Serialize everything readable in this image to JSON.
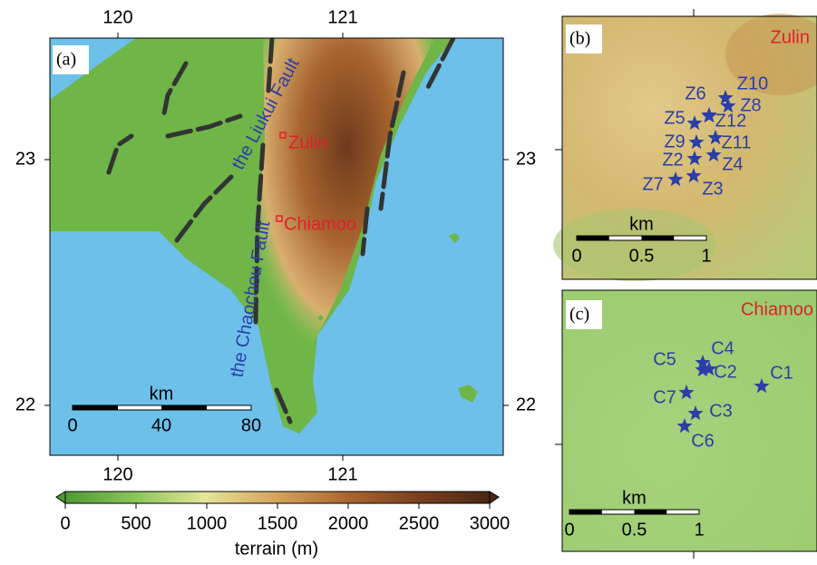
{
  "panel_a": {
    "label": "(a)",
    "top_ticks": [
      "120",
      "121"
    ],
    "bottom_ticks": [
      "120",
      "121"
    ],
    "left_ticks": [
      "23",
      "22"
    ],
    "right_ticks": [
      "23",
      "22"
    ],
    "sites": [
      "Zulin",
      "Chiamoo"
    ],
    "faults": [
      "the Liukui Fault",
      "the Chaochou Fault"
    ],
    "scale": {
      "unit": "km",
      "ticks": [
        "0",
        "40",
        "80"
      ]
    }
  },
  "colorbar": {
    "ticks": [
      "0",
      "500",
      "1000",
      "1500",
      "2000",
      "2500",
      "3000"
    ],
    "label": "terrain (m)"
  },
  "panel_b": {
    "label": "(b)",
    "site": "Zulin",
    "stations": [
      "Z10",
      "Z8",
      "Z6",
      "Z12",
      "Z5",
      "Z9",
      "Z11",
      "Z2",
      "Z4",
      "Z7",
      "Z3"
    ],
    "scale": {
      "unit": "km",
      "ticks": [
        "0",
        "0.5",
        "1"
      ]
    }
  },
  "panel_c": {
    "label": "(c)",
    "site": "Chiamoo",
    "stations": [
      "C5",
      "C4",
      "C2",
      "C1",
      "C7",
      "C3",
      "C6"
    ],
    "scale": {
      "unit": "km",
      "ticks": [
        "0",
        "0.5",
        "1"
      ]
    }
  }
}
